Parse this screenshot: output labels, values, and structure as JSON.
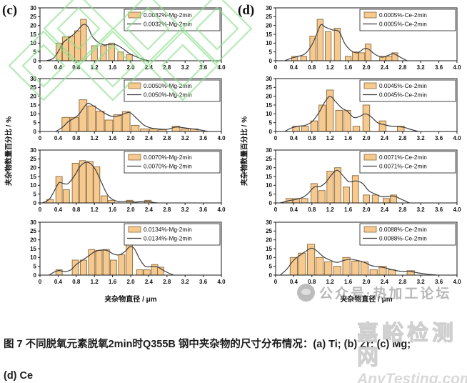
{
  "figure": {
    "panel_c": "(c)",
    "panel_d": "(d)",
    "ylabel": "夹杂物数量百分比 / %",
    "xlabel_left": "夹杂物直径 / μm",
    "xlabel_right": "夹杂物直径 / μm",
    "caption_line1": "图 7 不同脱氧元素脱氧2min时Q355B 钢中夹杂物的尺寸分布情况：(a) Ti; (b) Zr; (c) Mg;",
    "caption_line2": "(d) Ce"
  },
  "watermarks": {
    "wechat": "公众号·热加工论坛",
    "site_name": "嘉峪检测网",
    "site_url": "AnyTesting.com"
  },
  "colors": {
    "bar_fill": "#f6c98f",
    "bar_stroke": "#8a6a3f",
    "curve": "#3f3f3f",
    "axis": "#1a1a1a",
    "watermark_green": "#8de18d"
  },
  "chart_data": [
    {
      "id": "c1",
      "panel": "c",
      "type": "bar",
      "legend_bar": "0.0032%-Mg-2min",
      "legend_line": "0.0032%-Mg-2min",
      "xlim": [
        0,
        4.0
      ],
      "ylim": [
        0,
        30
      ],
      "xtick_step": 0.4,
      "ytick_step": 5,
      "xlabel": "夹杂物直径 / μm",
      "ylabel": "夹杂物数量百分比 / %",
      "bar_width_um": 0.13,
      "bars": {
        "x": [
          0.42,
          0.56,
          0.7,
          0.83,
          0.96,
          1.2,
          1.4,
          1.58,
          1.78,
          1.97
        ],
        "h": [
          10,
          13.5,
          14,
          17,
          23.5,
          8.5,
          8.5,
          10,
          5,
          3.5
        ]
      },
      "curve": [
        [
          0.15,
          0
        ],
        [
          0.3,
          1.5
        ],
        [
          0.42,
          6
        ],
        [
          0.52,
          10.5
        ],
        [
          0.62,
          12.5
        ],
        [
          0.72,
          14.5
        ],
        [
          0.82,
          17
        ],
        [
          0.95,
          20.5
        ],
        [
          1.05,
          19.5
        ],
        [
          1.15,
          14
        ],
        [
          1.28,
          10.5
        ],
        [
          1.42,
          9
        ],
        [
          1.55,
          9.3
        ],
        [
          1.68,
          9
        ],
        [
          1.82,
          7
        ],
        [
          1.95,
          4.5
        ],
        [
          2.1,
          2.5
        ],
        [
          2.25,
          1
        ],
        [
          2.4,
          0
        ]
      ]
    },
    {
      "id": "c2",
      "panel": "c",
      "type": "bar",
      "legend_bar": "0.0050%-Mg-2min",
      "legend_line": "0.0050%-Mg-2min",
      "xlim": [
        0,
        4.0
      ],
      "ylim": [
        0,
        30
      ],
      "xtick_step": 0.4,
      "ytick_step": 5,
      "xlabel": "夹杂物直径 / μm",
      "ylabel": "夹杂物数量百分比 / %",
      "bar_width_um": 0.17,
      "bars": {
        "x": [
          0.57,
          0.76,
          0.95,
          1.14,
          1.33,
          1.52,
          1.71,
          1.9,
          2.1,
          2.3,
          2.5,
          2.7,
          3.0,
          3.2,
          3.4
        ],
        "h": [
          8,
          8,
          18,
          14.5,
          11.5,
          6.5,
          9.5,
          11.3,
          3.5,
          1.5,
          1.5,
          1,
          3,
          1.5,
          1.5
        ]
      },
      "curve": [
        [
          0.35,
          0
        ],
        [
          0.5,
          2.5
        ],
        [
          0.62,
          5.5
        ],
        [
          0.75,
          7.5
        ],
        [
          0.85,
          9.5
        ],
        [
          0.95,
          13
        ],
        [
          1.05,
          16
        ],
        [
          1.15,
          15
        ],
        [
          1.3,
          12.5
        ],
        [
          1.45,
          10
        ],
        [
          1.6,
          8.5
        ],
        [
          1.75,
          9
        ],
        [
          1.9,
          10.5
        ],
        [
          2.0,
          10.5
        ],
        [
          2.15,
          7
        ],
        [
          2.3,
          3.5
        ],
        [
          2.45,
          2
        ],
        [
          2.6,
          1.5
        ],
        [
          2.8,
          1.2
        ],
        [
          3.0,
          2.5
        ],
        [
          3.15,
          2.2
        ],
        [
          3.35,
          1.5
        ],
        [
          3.55,
          0.8
        ],
        [
          3.7,
          0
        ]
      ]
    },
    {
      "id": "c3",
      "panel": "c",
      "type": "bar",
      "legend_bar": "0.0070%-Mg-2min",
      "legend_line": "0.0070%-Mg-2min",
      "xlim": [
        0,
        4.0
      ],
      "ylim": [
        0,
        30
      ],
      "xtick_step": 0.4,
      "ytick_step": 5,
      "xlabel": "夹杂物直径 / μm",
      "ylabel": "夹杂物数量百分比 / %",
      "bar_width_um": 0.14,
      "bars": {
        "x": [
          0.22,
          0.42,
          0.58,
          0.78,
          0.94,
          1.1,
          1.25,
          1.42,
          1.58,
          1.98,
          2.38
        ],
        "h": [
          2,
          15,
          7.5,
          22.5,
          24,
          23.5,
          20.5,
          4,
          1.5,
          1.5,
          1.5
        ]
      },
      "curve": [
        [
          0.05,
          0
        ],
        [
          0.2,
          2
        ],
        [
          0.32,
          7
        ],
        [
          0.42,
          11.5
        ],
        [
          0.52,
          11
        ],
        [
          0.62,
          11
        ],
        [
          0.75,
          15
        ],
        [
          0.88,
          20.5
        ],
        [
          1.0,
          23
        ],
        [
          1.1,
          22.5
        ],
        [
          1.22,
          19
        ],
        [
          1.35,
          12
        ],
        [
          1.48,
          5
        ],
        [
          1.6,
          2
        ],
        [
          1.75,
          0.8
        ],
        [
          1.95,
          1
        ],
        [
          2.1,
          0.5
        ],
        [
          2.35,
          1
        ],
        [
          2.5,
          0.3
        ],
        [
          2.6,
          0
        ]
      ]
    },
    {
      "id": "c4",
      "panel": "c",
      "type": "bar",
      "legend_bar": "0.0134%-Mg-2min",
      "legend_line": "0.0134%-Mg-2min",
      "xlim": [
        0,
        4.0
      ],
      "ylim": [
        0,
        30
      ],
      "xtick_step": 0.4,
      "ytick_step": 5,
      "xlabel": "夹杂物直径 / μm",
      "ylabel": "夹杂物数量百分比 / %",
      "bar_width_um": 0.14,
      "bars": {
        "x": [
          0.42,
          0.78,
          0.96,
          1.14,
          1.3,
          1.46,
          1.62,
          1.8,
          1.97,
          2.2,
          2.36,
          2.53,
          2.66
        ],
        "h": [
          3,
          8.5,
          8.5,
          14.5,
          14,
          14.5,
          8.5,
          11.5,
          20,
          3,
          3,
          6,
          4.5
        ]
      },
      "curve": [
        [
          0.2,
          0
        ],
        [
          0.32,
          1.8
        ],
        [
          0.42,
          2.6
        ],
        [
          0.55,
          2
        ],
        [
          0.68,
          3
        ],
        [
          0.8,
          6
        ],
        [
          0.95,
          8.7
        ],
        [
          1.08,
          11
        ],
        [
          1.22,
          13.5
        ],
        [
          1.35,
          14.2
        ],
        [
          1.48,
          14
        ],
        [
          1.62,
          12
        ],
        [
          1.75,
          11.5
        ],
        [
          1.88,
          13.5
        ],
        [
          1.98,
          16
        ],
        [
          2.08,
          15
        ],
        [
          2.2,
          9
        ],
        [
          2.32,
          5
        ],
        [
          2.45,
          4.8
        ],
        [
          2.58,
          4.8
        ],
        [
          2.7,
          3
        ],
        [
          2.85,
          1
        ],
        [
          2.95,
          0
        ]
      ]
    },
    {
      "id": "d1",
      "panel": "d",
      "type": "bar",
      "legend_bar": "0.0005%-Ce-2min",
      "legend_line": "0.0005%-Ce-2min",
      "xlim": [
        0,
        4.0
      ],
      "ylim": [
        0,
        30
      ],
      "xtick_step": 0.4,
      "ytick_step": 5,
      "xlabel": "夹杂物直径 / μm",
      "ylabel": "夹杂物数量百分比 / %",
      "bar_width_um": 0.13,
      "bars": {
        "x": [
          0.42,
          0.62,
          0.82,
          0.98,
          1.16,
          1.36,
          1.6,
          1.76,
          1.9,
          2.04,
          2.36,
          2.5,
          2.63
        ],
        "h": [
          2.5,
          2.5,
          14,
          23.5,
          16.5,
          18.5,
          2.5,
          5,
          4.5,
          9.5,
          2.5,
          2.5,
          4.5
        ]
      },
      "curve": [
        [
          0.2,
          0
        ],
        [
          0.35,
          1.5
        ],
        [
          0.5,
          2.5
        ],
        [
          0.65,
          4
        ],
        [
          0.8,
          9
        ],
        [
          0.92,
          16
        ],
        [
          1.0,
          20.5
        ],
        [
          1.1,
          19
        ],
        [
          1.25,
          17.5
        ],
        [
          1.4,
          16.5
        ],
        [
          1.52,
          10
        ],
        [
          1.65,
          6
        ],
        [
          1.8,
          4.5
        ],
        [
          1.95,
          6.8
        ],
        [
          2.05,
          6.5
        ],
        [
          2.2,
          3.5
        ],
        [
          2.35,
          2
        ],
        [
          2.5,
          3.2
        ],
        [
          2.6,
          4
        ],
        [
          2.75,
          2
        ],
        [
          2.9,
          0
        ]
      ]
    },
    {
      "id": "d2",
      "panel": "d",
      "type": "bar",
      "legend_bar": "0.0045%-Ce-2min",
      "legend_line": "0.0045%-Ce-2min",
      "xlim": [
        0,
        4.0
      ],
      "ylim": [
        0,
        30
      ],
      "xtick_step": 0.4,
      "ytick_step": 5,
      "xlabel": "夹杂物直径 / μm",
      "ylabel": "夹杂物数量百分比 / %",
      "bar_width_um": 0.15,
      "bars": {
        "x": [
          0.45,
          0.65,
          0.85,
          1.03,
          1.2,
          1.4,
          1.58,
          1.78,
          2.0,
          2.36,
          2.76
        ],
        "h": [
          3,
          3,
          6,
          15,
          23.5,
          12,
          12,
          3,
          15,
          6,
          3
        ]
      },
      "curve": [
        [
          0.2,
          0
        ],
        [
          0.35,
          2
        ],
        [
          0.5,
          3
        ],
        [
          0.65,
          3.5
        ],
        [
          0.8,
          5.5
        ],
        [
          0.95,
          10.5
        ],
        [
          1.08,
          16.5
        ],
        [
          1.2,
          20
        ],
        [
          1.32,
          17
        ],
        [
          1.45,
          13.5
        ],
        [
          1.58,
          11.5
        ],
        [
          1.72,
          8
        ],
        [
          1.85,
          8.5
        ],
        [
          1.98,
          10
        ],
        [
          2.1,
          8.5
        ],
        [
          2.25,
          5
        ],
        [
          2.4,
          3.8
        ],
        [
          2.55,
          3
        ],
        [
          2.7,
          2.8
        ],
        [
          2.85,
          2.2
        ],
        [
          3.0,
          1
        ],
        [
          3.15,
          0
        ]
      ]
    },
    {
      "id": "d3",
      "panel": "d",
      "type": "bar",
      "legend_bar": "0.0071%-Ce-2min",
      "legend_line": "0.0071%-Ce-2min",
      "xlim": [
        0,
        4.0
      ],
      "ylim": [
        0,
        30
      ],
      "xtick_step": 0.4,
      "ytick_step": 5,
      "xlabel": "夹杂物直径 / μm",
      "ylabel": "夹杂物数量百分比 / %",
      "bar_width_um": 0.14,
      "bars": {
        "x": [
          0.3,
          0.46,
          0.64,
          0.85,
          1.02,
          1.2,
          1.37,
          1.56,
          1.76,
          2.0,
          2.2,
          2.44,
          2.6
        ],
        "h": [
          2.5,
          2.5,
          2.5,
          11,
          7,
          18,
          20,
          9,
          15.5,
          4.5,
          4.5,
          2.5,
          4.5
        ]
      },
      "curve": [
        [
          0.1,
          0
        ],
        [
          0.28,
          1.2
        ],
        [
          0.45,
          2
        ],
        [
          0.6,
          3.2
        ],
        [
          0.72,
          5.5
        ],
        [
          0.85,
          9
        ],
        [
          0.98,
          9.3
        ],
        [
          1.1,
          11.5
        ],
        [
          1.25,
          16.5
        ],
        [
          1.37,
          18.5
        ],
        [
          1.5,
          15
        ],
        [
          1.62,
          12
        ],
        [
          1.78,
          12.5
        ],
        [
          1.92,
          11
        ],
        [
          2.05,
          7
        ],
        [
          2.2,
          5
        ],
        [
          2.35,
          3.5
        ],
        [
          2.5,
          3.8
        ],
        [
          2.62,
          3.8
        ],
        [
          2.78,
          2
        ],
        [
          2.95,
          0
        ]
      ]
    },
    {
      "id": "d4",
      "panel": "d",
      "type": "bar",
      "legend_bar": "0.0088%-Ce-2min",
      "legend_line": "0.0088%-Ce-2min",
      "xlim": [
        0,
        4.0
      ],
      "ylim": [
        0,
        30
      ],
      "xtick_step": 0.4,
      "ytick_step": 5,
      "xlabel": "夹杂物直径 / μm",
      "ylabel": "夹杂物数量百分比 / %",
      "bar_width_um": 0.16,
      "bars": {
        "x": [
          0.4,
          0.58,
          0.78,
          0.97,
          1.16,
          1.36,
          1.56,
          1.76,
          1.96,
          2.16,
          2.36,
          2.56,
          2.98
        ],
        "h": [
          10,
          12.5,
          17.5,
          10,
          7.5,
          5,
          10,
          8,
          7.5,
          3,
          5,
          3,
          2.5
        ]
      },
      "curve": [
        [
          0.1,
          0
        ],
        [
          0.25,
          3.5
        ],
        [
          0.4,
          8.5
        ],
        [
          0.55,
          11.5
        ],
        [
          0.68,
          13.8
        ],
        [
          0.8,
          15.3
        ],
        [
          0.92,
          13.5
        ],
        [
          1.05,
          10.5
        ],
        [
          1.2,
          8.5
        ],
        [
          1.35,
          7.2
        ],
        [
          1.5,
          8.3
        ],
        [
          1.65,
          9
        ],
        [
          1.8,
          8.3
        ],
        [
          1.95,
          7.3
        ],
        [
          2.1,
          5.5
        ],
        [
          2.25,
          4.8
        ],
        [
          2.4,
          4.2
        ],
        [
          2.55,
          3.2
        ],
        [
          2.75,
          2.2
        ],
        [
          2.95,
          2.2
        ],
        [
          3.15,
          1.2
        ],
        [
          3.35,
          0.5
        ],
        [
          3.55,
          0
        ]
      ]
    }
  ]
}
